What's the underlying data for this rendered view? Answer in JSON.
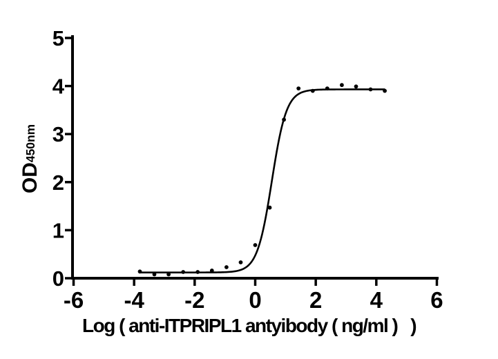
{
  "figure": {
    "background": "#ffffff",
    "ink_color": "#000000"
  },
  "chart_data": {
    "type": "scatter",
    "title": "",
    "xlabel": "Log ( anti-ITPRIPL1 antyibody ( ng/ml )   )",
    "ylabel_main": "OD",
    "ylabel_sub": "450nm",
    "xlim": [
      -6,
      6
    ],
    "ylim": [
      0,
      5
    ],
    "xticks": [
      -6,
      -4,
      -2,
      0,
      2,
      4,
      6
    ],
    "yticks": [
      0,
      1,
      2,
      3,
      4,
      5
    ],
    "grid": false,
    "legend": "none",
    "marker_color": "#000000",
    "curve_color": "#000000",
    "points": {
      "x": [
        -3.81,
        -3.33,
        -2.86,
        -2.38,
        -1.9,
        -1.43,
        -0.95,
        -0.48,
        0.0,
        0.48,
        0.95,
        1.43,
        1.9,
        2.38,
        2.86,
        3.33,
        3.81,
        4.28
      ],
      "y": [
        0.14,
        0.08,
        0.08,
        0.13,
        0.13,
        0.16,
        0.23,
        0.33,
        0.69,
        1.47,
        3.3,
        3.95,
        3.9,
        3.95,
        4.02,
        3.99,
        3.93,
        3.9
      ]
    },
    "fit_curve": {
      "model": "4PL-sigmoid",
      "bottom": 0.12,
      "top": 3.93,
      "logEC50": 0.55,
      "hill": 1.8,
      "x_start": -3.81,
      "x_end": 4.28
    }
  }
}
